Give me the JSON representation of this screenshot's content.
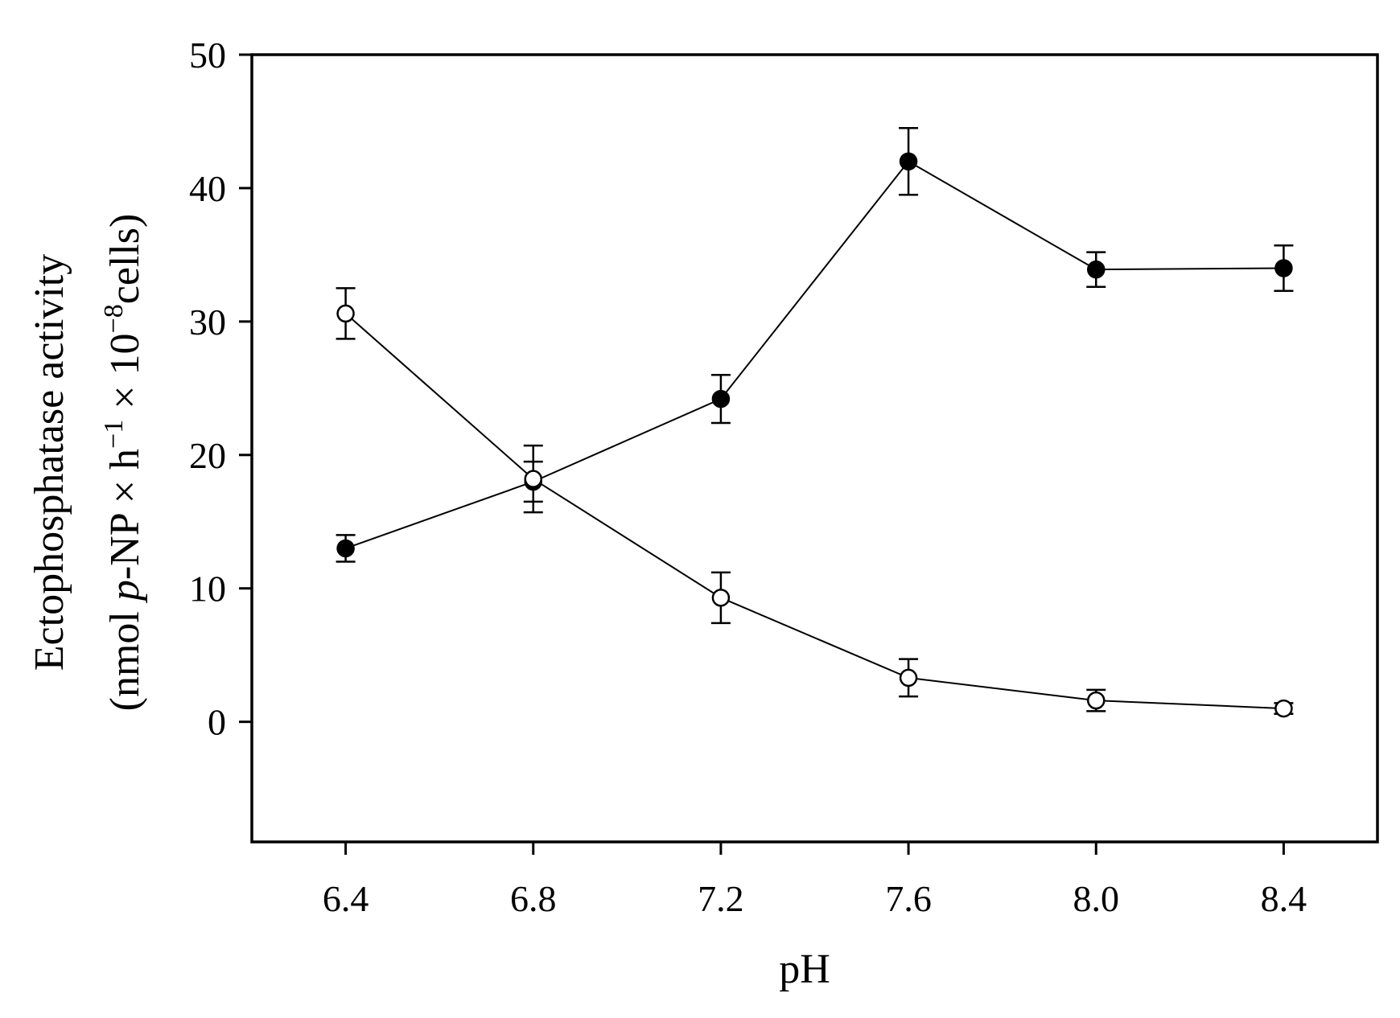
{
  "chart_data": {
    "type": "line",
    "title": "",
    "xlabel": "pH",
    "ylabel_line1": "Ectophosphatase activity",
    "ylabel_line2": {
      "part1": "(nmol ",
      "italic": "p",
      "part2": "-NP × h",
      "sup1": "−1",
      "part3": " × 10",
      "sup2": "−8",
      "part4": "cells)"
    },
    "x": [
      6.4,
      6.8,
      7.2,
      7.6,
      8.0,
      8.4
    ],
    "x_ticks": [
      "6.4",
      "6.8",
      "7.2",
      "7.6",
      "8.0",
      "8.4"
    ],
    "y_ticks": [
      "0",
      "10",
      "20",
      "30",
      "40",
      "50"
    ],
    "xlim": [
      6.2,
      8.6
    ],
    "ylim": [
      -9,
      50
    ],
    "grid": false,
    "legend": "none",
    "series": [
      {
        "marker": "filled-circle",
        "values": [
          13.0,
          18.0,
          24.2,
          42.0,
          33.9,
          34.0
        ],
        "errors": [
          1.0,
          1.5,
          1.8,
          2.5,
          1.3,
          1.7
        ]
      },
      {
        "marker": "open-circle",
        "values": [
          30.6,
          18.2,
          9.3,
          3.3,
          1.6,
          1.0
        ],
        "errors": [
          1.9,
          2.5,
          1.9,
          1.4,
          0.8,
          0.4
        ]
      }
    ]
  }
}
